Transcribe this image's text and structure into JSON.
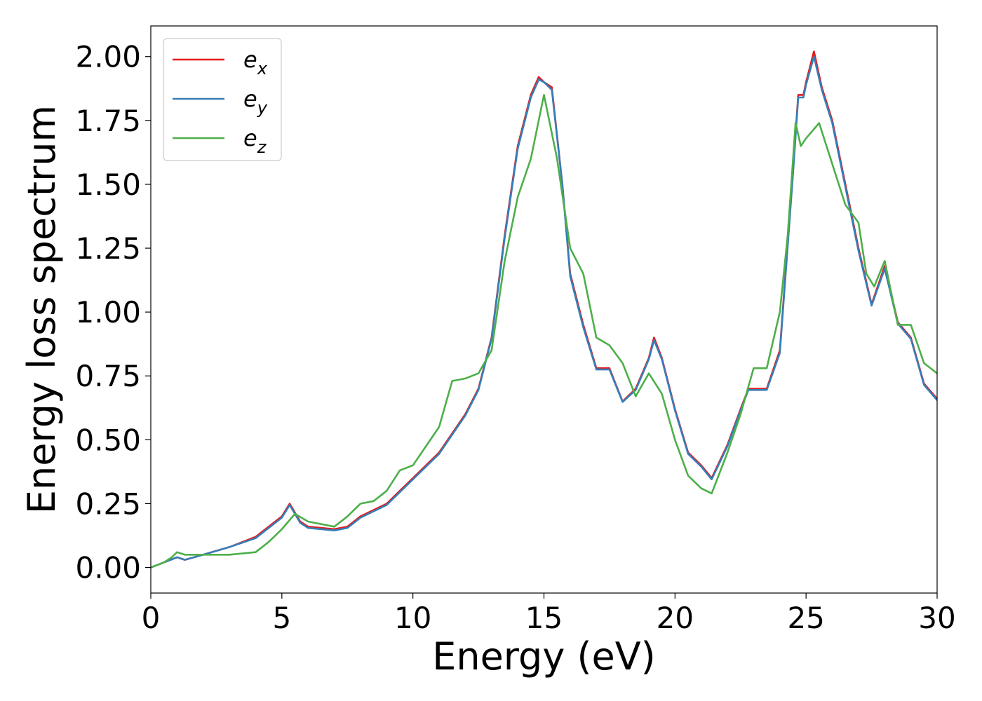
{
  "chart_data": {
    "type": "line",
    "title": "",
    "xlabel": "Energy (eV)",
    "ylabel": "Energy loss spectrum",
    "xlim": [
      0,
      30
    ],
    "ylim": [
      -0.1,
      2.12
    ],
    "xticks": [
      "0",
      "5",
      "10",
      "15",
      "20",
      "25",
      "30"
    ],
    "yticks": [
      "0.00",
      "0.25",
      "0.50",
      "0.75",
      "1.00",
      "1.25",
      "1.50",
      "1.75",
      "2.00"
    ],
    "grid": false,
    "legend_position": "top-left",
    "series": [
      {
        "name": "e",
        "subscript": "x",
        "color": "#e41a1c",
        "x": [
          0,
          0.5,
          1.0,
          1.3,
          2.0,
          3.0,
          4.0,
          4.5,
          5.0,
          5.3,
          5.7,
          6.0,
          7.0,
          7.5,
          8.0,
          9.0,
          9.5,
          10.0,
          11.0,
          12.0,
          12.5,
          13.0,
          13.5,
          14.0,
          14.5,
          14.8,
          15.0,
          15.3,
          15.7,
          16.0,
          16.5,
          17.0,
          17.5,
          18.0,
          18.5,
          19.0,
          19.2,
          19.5,
          20.0,
          20.5,
          21.0,
          21.4,
          22.0,
          22.5,
          22.8,
          23.0,
          23.5,
          24.0,
          24.5,
          24.7,
          24.9,
          25.0,
          25.3,
          25.6,
          26.0,
          26.5,
          27.0,
          27.5,
          28.0,
          28.5,
          29.0,
          29.5,
          30.0
        ],
        "y": [
          0.0,
          0.02,
          0.04,
          0.03,
          0.05,
          0.08,
          0.12,
          0.16,
          0.2,
          0.25,
          0.18,
          0.16,
          0.15,
          0.16,
          0.2,
          0.25,
          0.3,
          0.35,
          0.45,
          0.6,
          0.7,
          0.9,
          1.3,
          1.65,
          1.85,
          1.92,
          1.9,
          1.88,
          1.5,
          1.15,
          0.95,
          0.78,
          0.78,
          0.65,
          0.7,
          0.82,
          0.9,
          0.82,
          0.62,
          0.45,
          0.4,
          0.35,
          0.48,
          0.62,
          0.7,
          0.7,
          0.7,
          0.85,
          1.55,
          1.85,
          1.85,
          1.9,
          2.02,
          1.88,
          1.75,
          1.5,
          1.25,
          1.03,
          1.18,
          0.96,
          0.9,
          0.72,
          0.66
        ]
      },
      {
        "name": "e",
        "subscript": "y",
        "color": "#377eb8",
        "x": [
          0,
          0.5,
          1.0,
          1.3,
          2.0,
          3.0,
          4.0,
          4.5,
          5.0,
          5.3,
          5.7,
          6.0,
          7.0,
          7.5,
          8.0,
          9.0,
          9.5,
          10.0,
          11.0,
          12.0,
          12.5,
          13.0,
          13.5,
          14.0,
          14.5,
          14.8,
          15.0,
          15.3,
          15.7,
          16.0,
          16.5,
          17.0,
          17.5,
          18.0,
          18.5,
          19.0,
          19.2,
          19.5,
          20.0,
          20.5,
          21.0,
          21.4,
          22.0,
          22.5,
          22.8,
          23.0,
          23.5,
          24.0,
          24.5,
          24.7,
          24.9,
          25.0,
          25.3,
          25.6,
          26.0,
          26.5,
          27.0,
          27.5,
          28.0,
          28.5,
          29.0,
          29.5,
          30.0
        ],
        "y": [
          0.0,
          0.02,
          0.04,
          0.03,
          0.05,
          0.08,
          0.115,
          0.155,
          0.195,
          0.245,
          0.175,
          0.155,
          0.145,
          0.155,
          0.195,
          0.245,
          0.295,
          0.345,
          0.445,
          0.595,
          0.695,
          0.895,
          1.29,
          1.64,
          1.84,
          1.91,
          1.9,
          1.87,
          1.5,
          1.14,
          0.94,
          0.775,
          0.775,
          0.648,
          0.695,
          0.815,
          0.89,
          0.815,
          0.615,
          0.445,
          0.395,
          0.345,
          0.475,
          0.615,
          0.695,
          0.695,
          0.695,
          0.84,
          1.54,
          1.84,
          1.84,
          1.89,
          2.0,
          1.87,
          1.74,
          1.49,
          1.24,
          1.025,
          1.17,
          0.955,
          0.895,
          0.715,
          0.655
        ]
      },
      {
        "name": "e",
        "subscript": "z",
        "color": "#4daf4a",
        "x": [
          0,
          0.5,
          0.8,
          1.0,
          1.3,
          2.0,
          3.0,
          4.0,
          4.5,
          5.0,
          5.5,
          6.0,
          6.5,
          7.0,
          7.5,
          8.0,
          8.5,
          9.0,
          9.5,
          10.0,
          11.0,
          11.5,
          12.0,
          12.5,
          13.0,
          13.5,
          14.0,
          14.5,
          15.0,
          15.5,
          16.0,
          16.5,
          17.0,
          17.5,
          18.0,
          18.5,
          19.0,
          19.5,
          20.0,
          20.5,
          21.0,
          21.4,
          22.0,
          22.5,
          23.0,
          23.5,
          24.0,
          24.3,
          24.6,
          24.8,
          25.0,
          25.5,
          26.0,
          26.5,
          27.0,
          27.3,
          27.6,
          28.0,
          28.5,
          29.0,
          29.5,
          30.0
        ],
        "y": [
          0.0,
          0.02,
          0.04,
          0.06,
          0.05,
          0.05,
          0.05,
          0.06,
          0.1,
          0.15,
          0.21,
          0.18,
          0.17,
          0.16,
          0.2,
          0.25,
          0.26,
          0.3,
          0.38,
          0.4,
          0.55,
          0.73,
          0.74,
          0.76,
          0.85,
          1.2,
          1.45,
          1.6,
          1.85,
          1.6,
          1.25,
          1.15,
          0.9,
          0.87,
          0.8,
          0.67,
          0.76,
          0.68,
          0.5,
          0.36,
          0.31,
          0.29,
          0.45,
          0.6,
          0.78,
          0.78,
          1.0,
          1.3,
          1.74,
          1.65,
          1.68,
          1.74,
          1.58,
          1.42,
          1.35,
          1.15,
          1.1,
          1.2,
          0.95,
          0.95,
          0.8,
          0.76
        ]
      }
    ]
  }
}
